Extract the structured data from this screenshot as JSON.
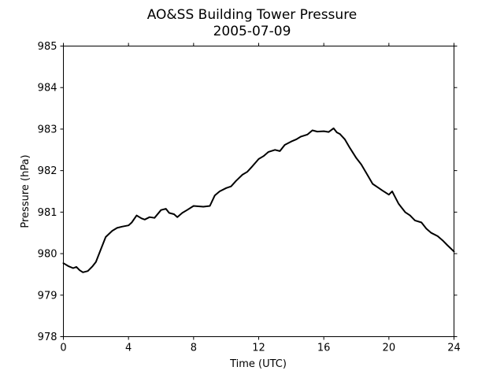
{
  "chart_data": {
    "type": "line",
    "title": "AO&SS Building Tower Pressure",
    "subtitle": "2005-07-09",
    "xlabel": "Time (UTC)",
    "ylabel": "Pressure (hPa)",
    "xlim": [
      0,
      24
    ],
    "ylim": [
      978,
      985
    ],
    "xticks": [
      0,
      4,
      8,
      12,
      16,
      20,
      24
    ],
    "yticks": [
      978,
      979,
      980,
      981,
      982,
      983,
      984,
      985
    ],
    "grid": false,
    "series": [
      {
        "color": "#000000",
        "x": [
          0.0,
          0.3,
          0.6,
          0.8,
          1.0,
          1.2,
          1.5,
          1.8,
          2.0,
          2.3,
          2.6,
          3.0,
          3.3,
          3.6,
          4.0,
          4.2,
          4.5,
          4.8,
          5.0,
          5.3,
          5.6,
          6.0,
          6.3,
          6.5,
          6.8,
          7.0,
          7.3,
          7.6,
          8.0,
          8.3,
          8.6,
          9.0,
          9.3,
          9.6,
          10.0,
          10.3,
          10.6,
          11.0,
          11.3,
          11.6,
          12.0,
          12.3,
          12.6,
          13.0,
          13.3,
          13.6,
          14.0,
          14.3,
          14.6,
          15.0,
          15.3,
          15.6,
          16.0,
          16.3,
          16.6,
          16.8,
          17.0,
          17.3,
          17.6,
          18.0,
          18.3,
          18.6,
          19.0,
          19.3,
          19.6,
          20.0,
          20.2,
          20.4,
          20.6,
          21.0,
          21.3,
          21.6,
          22.0,
          22.3,
          22.6,
          23.0,
          23.3,
          23.6,
          24.0
        ],
        "y": [
          979.77,
          979.7,
          979.65,
          979.68,
          979.6,
          979.55,
          979.58,
          979.7,
          979.8,
          980.1,
          980.4,
          980.55,
          980.62,
          980.65,
          980.68,
          980.75,
          980.92,
          980.85,
          980.82,
          980.88,
          980.86,
          981.05,
          981.08,
          980.98,
          980.95,
          980.88,
          980.98,
          981.05,
          981.15,
          981.14,
          981.13,
          981.15,
          981.4,
          981.5,
          981.58,
          981.62,
          981.75,
          981.9,
          981.97,
          982.1,
          982.28,
          982.35,
          982.45,
          982.5,
          982.47,
          982.62,
          982.7,
          982.75,
          982.82,
          982.87,
          982.97,
          982.94,
          982.95,
          982.93,
          983.02,
          982.92,
          982.88,
          982.75,
          982.55,
          982.3,
          982.15,
          981.95,
          981.68,
          981.6,
          981.52,
          981.42,
          981.5,
          981.35,
          981.2,
          981.0,
          980.92,
          980.8,
          980.75,
          980.6,
          980.5,
          980.42,
          980.32,
          980.2,
          980.05
        ]
      }
    ]
  }
}
